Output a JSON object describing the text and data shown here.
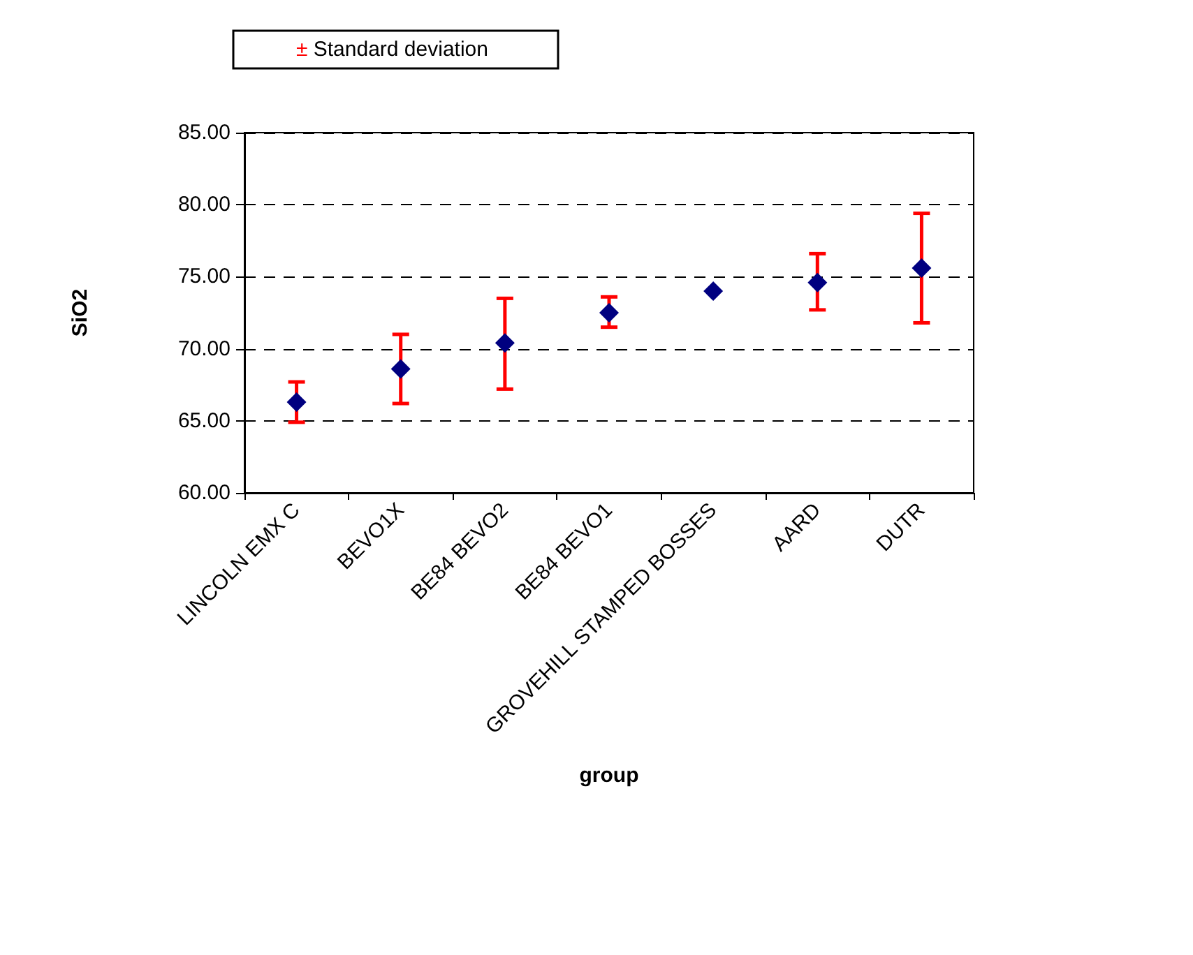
{
  "chart_data": {
    "type": "scatter",
    "xlabel": "group",
    "ylabel": "SiO2",
    "categories": [
      "LINCOLN EMX C",
      "BEVO1X",
      "BE84 BEVO2",
      "BE84 BEVO1",
      "GROVEHILL STAMPED BOSSES",
      "AARD",
      "DUTR"
    ],
    "series": [
      {
        "name": "± Standard deviation",
        "color": "#000080",
        "values": [
          66.3,
          68.6,
          70.4,
          72.5,
          74.0,
          74.6,
          75.6
        ],
        "errors": [
          [
            64.9,
            67.7
          ],
          [
            66.2,
            71.0
          ],
          [
            67.2,
            73.5
          ],
          [
            71.5,
            73.6
          ],
          null,
          [
            72.7,
            76.6
          ],
          [
            71.8,
            79.4
          ]
        ]
      }
    ],
    "ylim": [
      60,
      85
    ],
    "yticks": [
      {
        "value": 60,
        "label": "60.00"
      },
      {
        "value": 65,
        "label": "65.00"
      },
      {
        "value": 70,
        "label": "70.00"
      },
      {
        "value": 75,
        "label": "75.00"
      },
      {
        "value": 80,
        "label": "80.00"
      },
      {
        "value": 85,
        "label": "85.00"
      }
    ],
    "grid": "y",
    "legend": "top left",
    "marker": "diamond"
  }
}
